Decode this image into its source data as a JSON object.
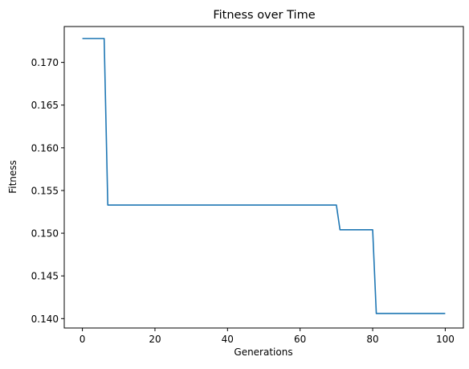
{
  "chart_data": {
    "type": "line",
    "title": "Fitness over Time",
    "xlabel": "Generations",
    "ylabel": "Fitness",
    "xlim": [
      -5,
      105
    ],
    "ylim": [
      0.1389,
      0.1742
    ],
    "x_ticks": [
      0,
      20,
      40,
      60,
      80,
      100
    ],
    "y_ticks": [
      0.14,
      0.145,
      0.15,
      0.155,
      0.16,
      0.165,
      0.17
    ],
    "x_tick_labels": [
      "0",
      "20",
      "40",
      "60",
      "80",
      "100"
    ],
    "y_tick_labels": [
      "0.140",
      "0.145",
      "0.150",
      "0.155",
      "0.160",
      "0.165",
      "0.170"
    ],
    "grid": false,
    "series": [
      {
        "color": "#1f77b4",
        "x": [
          0,
          6,
          7,
          70,
          71,
          80,
          81,
          100
        ],
        "y": [
          0.1728,
          0.1728,
          0.1533,
          0.1533,
          0.1504,
          0.1504,
          0.1406,
          0.1406
        ]
      }
    ]
  }
}
